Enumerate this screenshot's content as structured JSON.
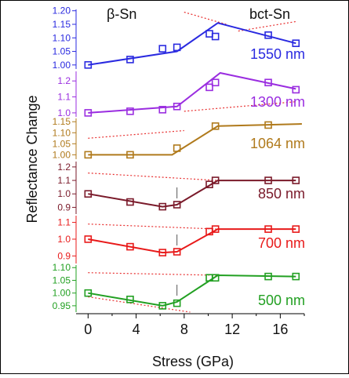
{
  "chart_data": {
    "type": "line",
    "ylabel": "Reflectance Change",
    "xlabel": "Stress (GPa)",
    "xlim": [
      -1,
      18
    ],
    "x_ticks": [
      "0",
      "4",
      "8",
      "12",
      "16"
    ],
    "x_tick_values": [
      0,
      4,
      8,
      12,
      16
    ],
    "phase_labels": [
      "β-Sn",
      "bct-Sn"
    ],
    "panels": [
      {
        "name": "1550 nm",
        "color": "#2a2ae0",
        "ylim": [
          0.985,
          1.205
        ],
        "y_ticks": [
          "1.20",
          "1.15",
          "1.10",
          "1.05",
          "1.00"
        ],
        "y_tick_values": [
          1.2,
          1.15,
          1.1,
          1.05,
          1.0
        ],
        "points": [
          [
            0,
            1.0
          ],
          [
            3.5,
            1.02
          ],
          [
            6.2,
            1.06
          ],
          [
            7.4,
            1.065
          ],
          [
            10.1,
            1.115
          ],
          [
            10.6,
            1.105
          ],
          [
            15.0,
            1.11
          ],
          [
            17.3,
            1.08
          ]
        ],
        "fit": [
          [
            0,
            1.0
          ],
          [
            7.4,
            1.05
          ],
          [
            10.8,
            1.155
          ],
          [
            17.3,
            1.08
          ]
        ],
        "trend": [
          [
            8.0,
            1.195
          ],
          [
            11.5,
            1.15
          ]
        ],
        "trend2": [
          [
            12.5,
            1.125
          ],
          [
            17.3,
            1.16
          ]
        ]
      },
      {
        "name": "1300 nm",
        "color": "#9a2de0",
        "ylim": [
          0.975,
          1.26
        ],
        "y_ticks": [
          "1.2",
          "1.1",
          "1.0"
        ],
        "y_tick_values": [
          1.2,
          1.1,
          1.0
        ],
        "points": [
          [
            0,
            1.0
          ],
          [
            3.5,
            1.01
          ],
          [
            6.2,
            1.02
          ],
          [
            7.4,
            1.04
          ],
          [
            10.1,
            1.16
          ],
          [
            10.6,
            1.19
          ],
          [
            15.0,
            1.19
          ],
          [
            17.3,
            1.145
          ]
        ],
        "fit": [
          [
            0,
            1.0
          ],
          [
            7.4,
            1.04
          ],
          [
            11.0,
            1.25
          ],
          [
            17.3,
            1.15
          ]
        ],
        "trend": [
          [
            8.0,
            1.01
          ],
          [
            17.3,
            1.07
          ]
        ]
      },
      {
        "name": "1064 nm",
        "color": "#b07a1c",
        "ylim": [
          0.98,
          1.165
        ],
        "y_ticks": [
          "1.15",
          "1.10",
          "1.05",
          "1.00"
        ],
        "y_tick_values": [
          1.15,
          1.1,
          1.05,
          1.0
        ],
        "points": [
          [
            0,
            1.0
          ],
          [
            3.5,
            1.0
          ],
          [
            7.4,
            1.03
          ],
          [
            10.6,
            1.13
          ],
          [
            15.0,
            1.135
          ]
        ],
        "fit": [
          [
            0,
            1.0
          ],
          [
            7.0,
            1.0
          ],
          [
            10.8,
            1.13
          ],
          [
            17.8,
            1.14
          ]
        ],
        "trend": [
          [
            0,
            1.075
          ],
          [
            8.0,
            1.11
          ]
        ]
      },
      {
        "name": "850 nm",
        "color": "#7a1a2a",
        "ylim": [
          0.85,
          1.24
        ],
        "y_ticks": [
          "1.2",
          "1.1",
          "1.0",
          "0.9"
        ],
        "y_tick_values": [
          1.2,
          1.1,
          1.0,
          0.9
        ],
        "points": [
          [
            0,
            1.0
          ],
          [
            3.5,
            0.94
          ],
          [
            6.2,
            0.905
          ],
          [
            7.4,
            0.92
          ],
          [
            10.1,
            1.07
          ],
          [
            10.6,
            1.1
          ],
          [
            15.0,
            1.1
          ],
          [
            17.3,
            1.1
          ]
        ],
        "fit": [
          [
            0,
            1.0
          ],
          [
            6.2,
            0.905
          ],
          [
            7.4,
            0.92
          ],
          [
            10.8,
            1.1
          ],
          [
            17.3,
            1.1
          ]
        ],
        "trend": [
          [
            0,
            1.155
          ],
          [
            10.8,
            1.1
          ]
        ]
      },
      {
        "name": "700 nm",
        "color": "#e81a1a",
        "ylim": [
          0.855,
          1.14
        ],
        "y_ticks": [
          "1.1",
          "1.0",
          "0.9"
        ],
        "y_tick_values": [
          1.1,
          1.0,
          0.9
        ],
        "points": [
          [
            0,
            1.0
          ],
          [
            3.5,
            0.955
          ],
          [
            6.2,
            0.92
          ],
          [
            7.4,
            0.925
          ],
          [
            10.1,
            1.045
          ],
          [
            10.6,
            1.06
          ],
          [
            15.0,
            1.06
          ],
          [
            17.3,
            1.06
          ]
        ],
        "fit": [
          [
            0,
            1.0
          ],
          [
            6.2,
            0.92
          ],
          [
            7.4,
            0.925
          ],
          [
            10.8,
            1.06
          ],
          [
            17.3,
            1.06
          ]
        ],
        "trend": [
          [
            0,
            1.09
          ],
          [
            10.8,
            1.06
          ]
        ]
      },
      {
        "name": "500 nm",
        "color": "#22a022",
        "ylim": [
          0.925,
          1.11
        ],
        "y_ticks": [
          "1.10",
          "1.05",
          "1.00",
          "0.95"
        ],
        "y_tick_values": [
          1.1,
          1.05,
          1.0,
          0.95
        ],
        "points": [
          [
            0,
            1.0
          ],
          [
            3.5,
            0.975
          ],
          [
            6.2,
            0.95
          ],
          [
            7.4,
            0.96
          ],
          [
            10.1,
            1.06
          ],
          [
            10.6,
            1.06
          ],
          [
            15.0,
            1.065
          ],
          [
            17.3,
            1.065
          ]
        ],
        "fit": [
          [
            0,
            1.0
          ],
          [
            6.2,
            0.95
          ],
          [
            7.4,
            0.965
          ],
          [
            10.8,
            1.07
          ],
          [
            17.3,
            1.065
          ]
        ],
        "trend": [
          [
            0,
            1.08
          ],
          [
            10.8,
            1.07
          ]
        ],
        "trend2": [
          [
            0,
            0.985
          ],
          [
            8.5,
            0.925
          ]
        ]
      }
    ],
    "transition_marks_x": [
      7.4
    ]
  }
}
